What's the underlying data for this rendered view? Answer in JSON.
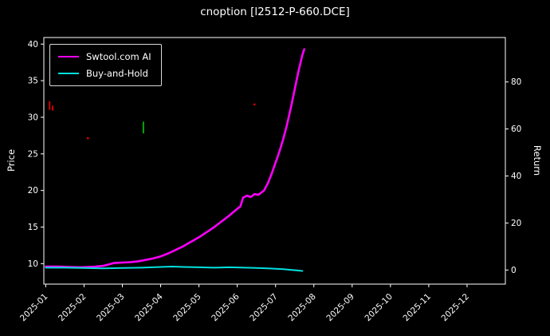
{
  "window": {
    "title": "cnoption [l2512-P-660.DCE]"
  },
  "chart_data": {
    "type": "line",
    "title": "cnoption [l2512-P-660.DCE]",
    "xlabel": "",
    "ylabel": "Price",
    "y2label": "Return",
    "grid": false,
    "background_color": "#000000",
    "axis_color": "#ffffff",
    "legend_position": "upper left",
    "xlim": [
      0.95,
      13.0
    ],
    "ylim": [
      7.2,
      40.9
    ],
    "y2lim": [
      -6.0,
      98.9
    ],
    "x_ticks": [
      {
        "value": 1,
        "label": "2025-01"
      },
      {
        "value": 2,
        "label": "2025-02"
      },
      {
        "value": 3,
        "label": "2025-03"
      },
      {
        "value": 4,
        "label": "2025-04"
      },
      {
        "value": 5,
        "label": "2025-05"
      },
      {
        "value": 6,
        "label": "2025-06"
      },
      {
        "value": 7,
        "label": "2025-07"
      },
      {
        "value": 8,
        "label": "2025-08"
      },
      {
        "value": 9,
        "label": "2025-09"
      },
      {
        "value": 10,
        "label": "2025-10"
      },
      {
        "value": 11,
        "label": "2025-11"
      },
      {
        "value": 12,
        "label": "2025-12"
      }
    ],
    "y_ticks": [
      10,
      15,
      20,
      25,
      30,
      35,
      40
    ],
    "y2_ticks": [
      0,
      20,
      40,
      60,
      80
    ],
    "series": [
      {
        "name": "Swtool.com AI",
        "color": "#ff00ff",
        "line_width": 2.6,
        "x": [
          1.0,
          1.3,
          1.6,
          1.9,
          2.1,
          2.3,
          2.5,
          2.65,
          2.8,
          3.0,
          3.2,
          3.4,
          3.6,
          3.8,
          4.0,
          4.2,
          4.4,
          4.6,
          4.8,
          5.0,
          5.2,
          5.4,
          5.6,
          5.8,
          6.0,
          6.08,
          6.15,
          6.25,
          6.35,
          6.45,
          6.55,
          6.6,
          6.7,
          6.8,
          6.9,
          7.0,
          7.1,
          7.2,
          7.3,
          7.4,
          7.5,
          7.6,
          7.7,
          7.75
        ],
        "y": [
          9.6,
          9.6,
          9.55,
          9.5,
          9.55,
          9.6,
          9.7,
          9.9,
          10.1,
          10.15,
          10.2,
          10.3,
          10.5,
          10.7,
          11.0,
          11.4,
          11.9,
          12.4,
          13.0,
          13.6,
          14.3,
          15.0,
          15.8,
          16.6,
          17.5,
          17.8,
          19.0,
          19.3,
          19.1,
          19.5,
          19.4,
          19.6,
          20.0,
          21.0,
          22.3,
          23.8,
          25.3,
          27.0,
          29.0,
          31.3,
          33.8,
          36.3,
          38.5,
          39.3
        ]
      },
      {
        "name": "Buy-and-Hold",
        "color": "#00e0e0",
        "line_width": 2.0,
        "x": [
          1.0,
          1.5,
          2.0,
          2.5,
          3.0,
          3.5,
          4.0,
          4.3,
          4.6,
          5.0,
          5.4,
          5.8,
          6.2,
          6.5,
          6.8,
          7.0,
          7.2,
          7.4,
          7.6,
          7.7
        ],
        "y": [
          9.45,
          9.45,
          9.4,
          9.35,
          9.4,
          9.45,
          9.55,
          9.6,
          9.55,
          9.5,
          9.45,
          9.5,
          9.45,
          9.4,
          9.35,
          9.3,
          9.25,
          9.15,
          9.05,
          9.0
        ]
      }
    ],
    "markers": [
      {
        "x": 1.1,
        "y1": 31.0,
        "y2": 32.2,
        "color": "#cc0000",
        "type": "tick"
      },
      {
        "x": 1.18,
        "y1": 30.9,
        "y2": 31.6,
        "color": "#cc0000",
        "type": "tick"
      },
      {
        "x": 2.1,
        "y1": 27.0,
        "y2": 27.3,
        "color": "#cc0000",
        "type": "dot"
      },
      {
        "x": 3.55,
        "y1": 27.8,
        "y2": 29.4,
        "color": "#00aa00",
        "type": "tick"
      },
      {
        "x": 6.45,
        "y1": 31.6,
        "y2": 31.9,
        "color": "#cc0000",
        "type": "dot"
      }
    ]
  }
}
